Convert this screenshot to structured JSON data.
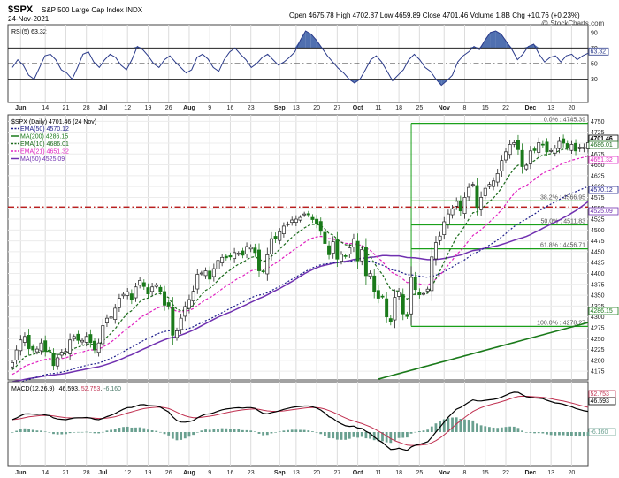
{
  "header": {
    "symbol": "$SPX",
    "name": "S&P 500 Large Cap Index INDX",
    "date": "24-Nov-2021",
    "ohlc": "Open 4675.78  High 4702.87  Low 4659.89  Close 4701.46  Volume 1.8B  Chg +10.76 (+0.23%)",
    "watermark": "@ StockCharts.com"
  },
  "colors": {
    "candle_up": "#ffffff",
    "candle_down": "#1a7a1a",
    "ema50": "#1c1c8a",
    "ma200": "#1a7a1a",
    "ema10": "#1a6a1a",
    "ema21": "#e020c0",
    "ma50": "#7030b0",
    "rsi_fill": "#5070b0",
    "fib_line": "#1aa01a",
    "resistance": "#b00000",
    "macd": "#000000",
    "signal": "#c03050",
    "hist": "#6aa090"
  },
  "chart_data": [
    {
      "panel": "rsi",
      "type": "line",
      "title": "RSI(5) 63.32",
      "last_label": "63.32",
      "ylim": [
        0,
        100
      ],
      "yticks": [
        {
          "v": 90,
          "t": "90"
        },
        {
          "v": 70,
          "t": "70"
        },
        {
          "v": 50,
          "t": "50"
        },
        {
          "v": 30,
          "t": "30"
        }
      ],
      "levels": [
        70,
        50,
        30
      ],
      "values": [
        45,
        55,
        48,
        35,
        30,
        45,
        60,
        62,
        55,
        42,
        38,
        30,
        45,
        62,
        65,
        52,
        45,
        55,
        62,
        58,
        48,
        42,
        55,
        72,
        68,
        60,
        50,
        45,
        55,
        60,
        52,
        45,
        38,
        42,
        58,
        62,
        56,
        45,
        40,
        55,
        65,
        70,
        62,
        55,
        45,
        50,
        58,
        62,
        55,
        48,
        52,
        58,
        65,
        80,
        92,
        88,
        80,
        70,
        60,
        52,
        44,
        38,
        30,
        25,
        30,
        42,
        55,
        60,
        52,
        40,
        28,
        35,
        42,
        55,
        62,
        55,
        45,
        40,
        30,
        22,
        28,
        35,
        52,
        60,
        65,
        72,
        68,
        80,
        90,
        92,
        88,
        78,
        68,
        55,
        62,
        72,
        75,
        62,
        52,
        58,
        60,
        52,
        60,
        62,
        55,
        60,
        63.32
      ]
    },
    {
      "panel": "price",
      "type": "candlestick",
      "title": "$SPX (Daily) 4701.46 (24 Nov)",
      "ylim": [
        4155,
        4765
      ],
      "legend": [
        {
          "label": "EMA(50) 4570.12",
          "key": "ema50"
        },
        {
          "label": "MA(200) 4286.15",
          "key": "ma200"
        },
        {
          "label": "EMA(10) 4686.01",
          "key": "ema10"
        },
        {
          "label": "EMA(21) 4651.32",
          "key": "ema21"
        },
        {
          "label": "MA(50) 4525.09",
          "key": "ma50"
        }
      ],
      "yticks": [
        "4750",
        "4725",
        "4700",
        "4675",
        "4650",
        "4625",
        "4600",
        "4575",
        "4550",
        "4525",
        "4500",
        "4475",
        "4450",
        "4425",
        "4400",
        "4375",
        "4350",
        "4325",
        "4300",
        "4275",
        "4250",
        "4225",
        "4200",
        "4175"
      ],
      "right_labels": [
        {
          "v": 4701.46,
          "t": "4701.46",
          "key": "price"
        },
        {
          "v": 4686.01,
          "t": "4686.01",
          "key": "ema10"
        },
        {
          "v": 4651.32,
          "t": "4651.32",
          "key": "ema21"
        },
        {
          "v": 4570.12,
          "t": "4570.12",
          "key": "ema50"
        },
        {
          "v": 4525.09,
          "t": "4525.09",
          "key": "ma50"
        },
        {
          "v": 4286.15,
          "t": "4286.15",
          "key": "ma200"
        }
      ],
      "resistance": 4553,
      "fib_levels": [
        {
          "v": 4745.39,
          "t": "0.0% : 4745.39"
        },
        {
          "v": 4566.95,
          "t": "38.2% : 4566.95"
        },
        {
          "v": 4511.83,
          "t": "50.0% : 4511.83"
        },
        {
          "v": 4456.71,
          "t": "61.8% : 4456.71"
        },
        {
          "v": 4278.27,
          "t": "100.0% : 4278.27"
        }
      ],
      "close": [
        4195,
        4224,
        4247,
        4255,
        4227,
        4224,
        4226,
        4240,
        4221,
        4223,
        4188,
        4206,
        4219,
        4221,
        4247,
        4255,
        4246,
        4246,
        4255,
        4241,
        4224,
        4240,
        4280,
        4297,
        4300,
        4320,
        4343,
        4352,
        4358,
        4340,
        4369,
        4384,
        4370,
        4353,
        4369,
        4374,
        4358,
        4327,
        4325,
        4258,
        4268,
        4297,
        4324,
        4340,
        4359,
        4398,
        4401,
        4406,
        4387,
        4411,
        4430,
        4437,
        4436,
        4438,
        4448,
        4447,
        4442,
        4462,
        4460,
        4448,
        4406,
        4405,
        4443,
        4480,
        4479,
        4496,
        4509,
        4514,
        4523,
        4525,
        4529,
        4537,
        4535,
        4524,
        4514,
        4497,
        4469,
        4443,
        4473,
        4433,
        4444,
        4439,
        4459,
        4480,
        4429,
        4455,
        4395,
        4400,
        4358,
        4343,
        4346,
        4300,
        4288,
        4345,
        4357,
        4307,
        4301,
        4391,
        4363,
        4351,
        4354,
        4364,
        4438,
        4471,
        4486,
        4519,
        4537,
        4549,
        4566,
        4544,
        4575,
        4598,
        4605,
        4552,
        4575,
        4596,
        4605,
        4613,
        4630,
        4660,
        4680,
        4697,
        4701,
        4685,
        4646,
        4649,
        4682,
        4683,
        4701,
        4697,
        4680,
        4683,
        4688,
        4704,
        4700,
        4689,
        4697,
        4682,
        4691,
        4691,
        4701
      ],
      "x_ticks": [
        {
          "i": 2,
          "t": "Jun"
        },
        {
          "i": 8,
          "t": "14"
        },
        {
          "i": 13,
          "t": "21"
        },
        {
          "i": 18,
          "t": "28"
        },
        {
          "i": 22,
          "t": "Jul"
        },
        {
          "i": 28,
          "t": "12"
        },
        {
          "i": 33,
          "t": "19"
        },
        {
          "i": 38,
          "t": "26"
        },
        {
          "i": 43,
          "t": "Aug"
        },
        {
          "i": 48,
          "t": "9"
        },
        {
          "i": 53,
          "t": "16"
        },
        {
          "i": 58,
          "t": "23"
        },
        {
          "i": 65,
          "t": "Sep"
        },
        {
          "i": 69,
          "t": "13"
        },
        {
          "i": 74,
          "t": "20"
        },
        {
          "i": 79,
          "t": "27"
        },
        {
          "i": 84,
          "t": "Oct"
        },
        {
          "i": 89,
          "t": "11"
        },
        {
          "i": 94,
          "t": "18"
        },
        {
          "i": 99,
          "t": "25"
        },
        {
          "i": 105,
          "t": "Nov"
        },
        {
          "i": 110,
          "t": "8"
        },
        {
          "i": 115,
          "t": "15"
        },
        {
          "i": 120,
          "t": "22"
        },
        {
          "i": 126,
          "t": "Dec"
        },
        {
          "i": 131,
          "t": "13"
        },
        {
          "i": 136,
          "t": "20"
        }
      ]
    },
    {
      "panel": "macd",
      "type": "line",
      "title": "MACD(12,26,9) 46.593, 52.753, -6.160",
      "title_parts": {
        "name": "MACD(12,26,9)",
        "macd": "46.593",
        "signal": "52.753",
        "hist": "-6.160"
      },
      "ylim": [
        -60,
        90
      ],
      "right_labels": [
        {
          "v": 52.753,
          "t": "52.753",
          "key": "signal"
        },
        {
          "v": 46.593,
          "t": "46.593",
          "key": "macd"
        },
        {
          "v": -6.16,
          "t": "-6.160",
          "key": "hist"
        }
      ]
    }
  ]
}
